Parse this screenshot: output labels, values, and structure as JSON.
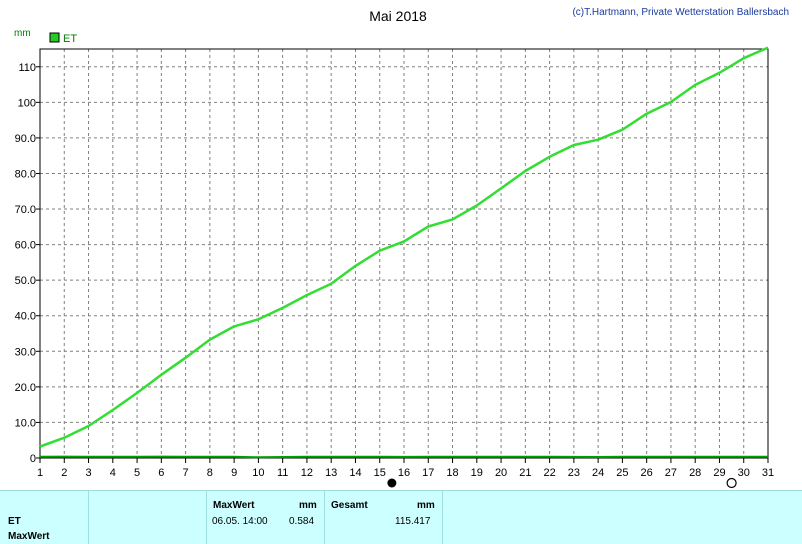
{
  "header": {
    "title": "Mai 2018",
    "credit": "(c)T.Hartmann, Private Wetterstation Ballersbach"
  },
  "chart_data": {
    "type": "line",
    "title": "Mai 2018",
    "ylabel": "mm",
    "xlim": [
      1,
      31
    ],
    "ylim": [
      0,
      115
    ],
    "grid": true,
    "legend_placement": "top-left",
    "x_ticks": [
      1,
      2,
      3,
      4,
      5,
      6,
      7,
      8,
      9,
      10,
      11,
      12,
      13,
      14,
      15,
      16,
      17,
      18,
      19,
      20,
      21,
      22,
      23,
      24,
      25,
      26,
      27,
      28,
      29,
      30,
      31
    ],
    "y_ticks": [
      0,
      10,
      20,
      30,
      40,
      50,
      60,
      70,
      80,
      90,
      100,
      110
    ],
    "y_tick_labels": [
      "0",
      "10.0",
      "20.0",
      "30.0",
      "40.0",
      "50.0",
      "60.0",
      "70.0",
      "80.0",
      "90.0",
      "100",
      "110"
    ],
    "series": [
      {
        "name": "ET",
        "color": "#33dd33",
        "x": [
          1,
          2,
          3,
          4,
          5,
          6,
          7,
          8,
          9,
          10,
          11,
          12,
          13,
          14,
          15,
          16,
          17,
          18,
          19,
          20,
          21,
          22,
          23,
          24,
          25,
          26,
          27,
          28,
          29,
          30,
          31
        ],
        "values": [
          3.2,
          5.7,
          9.0,
          13.5,
          18.3,
          23.4,
          28.2,
          33.3,
          37.0,
          39.0,
          42.2,
          45.8,
          49.0,
          54.0,
          58.3,
          60.9,
          65.1,
          67.1,
          71.0,
          75.8,
          80.7,
          84.7,
          88.0,
          89.5,
          92.3,
          96.8,
          100.1,
          104.9,
          108.3,
          112.4,
          115.4
        ]
      },
      {
        "name": "",
        "color": "#00a000",
        "x": [
          1,
          2,
          3,
          4,
          5,
          6,
          7,
          8,
          9,
          10,
          11,
          12,
          13,
          14,
          15,
          16,
          17,
          18,
          19,
          20,
          21,
          22,
          23,
          24,
          25,
          26,
          27,
          28,
          29,
          30,
          31
        ],
        "values": [
          0.35,
          0.38,
          0.35,
          0.33,
          0.37,
          0.4,
          0.36,
          0.35,
          0.33,
          0.2,
          0.28,
          0.35,
          0.34,
          0.36,
          0.33,
          0.3,
          0.36,
          0.34,
          0.33,
          0.37,
          0.35,
          0.35,
          0.3,
          0.28,
          0.33,
          0.35,
          0.34,
          0.36,
          0.33,
          0.35,
          0.34
        ]
      }
    ],
    "markers": [
      {
        "x": 15.5,
        "type": "full-moon"
      },
      {
        "x": 29.5,
        "type": "new-moon"
      }
    ]
  },
  "panel": {
    "row_label_et": "ET",
    "row_label_maxwert": "MaxWert",
    "maxwert_header": "MaxWert",
    "maxwert_unit": "mm",
    "maxwert_datetime": "06.05.  14:00",
    "maxwert_value": "0.584",
    "gesamt_header": "Gesamt",
    "gesamt_unit": "mm",
    "gesamt_value": "115.417"
  }
}
